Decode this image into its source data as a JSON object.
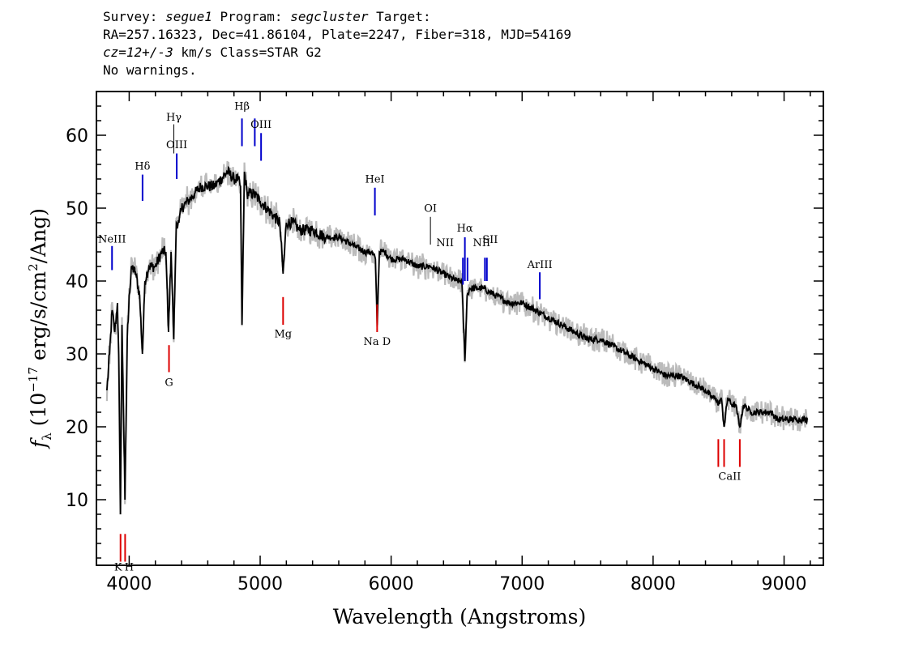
{
  "header": {
    "line1": {
      "survey_label": "Survey: ",
      "survey": "segue1",
      "program_label": " Program: ",
      "program": "segcluster",
      "target_label": " Target:"
    },
    "line2": "RA=257.16323, Dec=41.86104, Plate=2247, Fiber=318, MJD=54169",
    "line3": {
      "cz": "cz=12+/-3",
      "rest": " km/s Class=STAR G2"
    },
    "line4": "No warnings."
  },
  "chart_data": {
    "type": "line",
    "xlabel": "Wavelength (Angstroms)",
    "ylabel": "f_λ (10^-17 erg/s/cm^2/Ang)",
    "xlim": [
      3750,
      9300
    ],
    "ylim": [
      1,
      66
    ],
    "x_ticks": [
      4000,
      5000,
      6000,
      7000,
      8000,
      9000
    ],
    "y_ticks": [
      10,
      20,
      30,
      40,
      50,
      60
    ],
    "colors": {
      "flux": "#000000",
      "error": "#bbbbbb",
      "emission": "#0000cc",
      "absorption": "#dd0000",
      "sky": "#000000"
    },
    "series": [
      {
        "x": [
          3830,
          3850,
          3870,
          3890,
          3910,
          3920,
          3933,
          3945,
          3968,
          3985,
          4000,
          4020,
          4050,
          4080,
          4101,
          4120,
          4150,
          4200,
          4250,
          4280,
          4300,
          4320,
          4340,
          4360,
          4380,
          4400,
          4450,
          4500,
          4550,
          4600,
          4650,
          4700,
          4750,
          4800,
          4830,
          4850,
          4861,
          4880,
          4900,
          4950,
          5000,
          5050,
          5100,
          5150,
          5175,
          5200,
          5250,
          5300,
          5400,
          5500,
          5600,
          5700,
          5800,
          5850,
          5880,
          5893,
          5910,
          5950,
          6000,
          6100,
          6200,
          6300,
          6400,
          6500,
          6540,
          6563,
          6580,
          6600,
          6650,
          6700,
          6800,
          6900,
          7000,
          7100,
          7200,
          7300,
          7400,
          7500,
          7600,
          7700,
          7800,
          7900,
          8000,
          8100,
          8200,
          8300,
          8400,
          8450,
          8480,
          8498,
          8520,
          8542,
          8570,
          8600,
          8630,
          8662,
          8690,
          8750,
          8800,
          8850,
          8900,
          8950,
          9000,
          9050,
          9100,
          9150,
          9180
        ],
        "y": [
          25,
          30,
          36,
          33,
          37,
          30,
          8,
          34,
          10,
          32,
          38,
          42,
          41,
          38,
          30,
          40,
          42,
          42,
          44,
          44,
          33,
          44,
          32,
          48,
          48,
          50,
          51,
          52,
          53,
          53,
          53,
          54,
          55,
          54,
          54,
          53,
          34,
          55,
          52,
          52,
          51,
          50,
          49,
          48,
          41,
          48,
          48,
          47,
          47,
          46,
          46,
          45,
          44,
          44,
          43,
          34,
          44,
          44,
          43,
          43,
          42,
          42,
          41,
          40,
          40,
          29,
          38,
          39,
          39,
          39,
          38,
          37,
          37,
          36,
          35,
          34,
          33,
          32,
          32,
          31,
          30,
          29,
          28,
          27,
          27,
          26,
          25,
          24,
          24,
          23,
          24,
          20,
          24,
          23,
          23,
          20,
          23,
          22,
          22,
          22,
          22,
          21,
          21,
          21,
          21,
          21,
          21
        ]
      }
    ],
    "line_markers": [
      {
        "label": "NeIII",
        "wavelength": 3869,
        "kind": "emission",
        "y1": 41.5,
        "y2": 44.8,
        "label_y": 45.3
      },
      {
        "label": "Hδ",
        "wavelength": 4102,
        "kind": "emission",
        "y1": 51,
        "y2": 54.6,
        "label_y": 55.3
      },
      {
        "label": "Hγ",
        "wavelength": 4341,
        "kind": "sky",
        "y1": 57.5,
        "y2": 61.5,
        "label_y": 62.0
      },
      {
        "label": "OIII",
        "wavelength": 4363,
        "kind": "emission",
        "y1": 54,
        "y2": 57.5,
        "label_y": 58.2
      },
      {
        "label": "Hβ",
        "wavelength": 4861,
        "kind": "emission",
        "y1": 58.5,
        "y2": 62.3,
        "label_y": 63.5
      },
      {
        "label": "OIII",
        "wavelength": 4959,
        "kind": "emission",
        "y1": 58.5,
        "y2": 62.3,
        "label_y": -1
      },
      {
        "label": "OIII",
        "wavelength": 5007,
        "kind": "emission",
        "y1": 56.5,
        "y2": 60.3,
        "label_y": 61.0
      },
      {
        "label": "HeI",
        "wavelength": 5876,
        "kind": "emission",
        "y1": 49,
        "y2": 52.8,
        "label_y": 53.5
      },
      {
        "label": "OI",
        "wavelength": 6300,
        "kind": "sky",
        "y1": 45,
        "y2": 48.8,
        "label_y": 49.5
      },
      {
        "label": "NII",
        "wavelength": 6548,
        "kind": "emission",
        "y1": 39.5,
        "y2": 43.2,
        "label_y": 44.8
      },
      {
        "label": "Hα",
        "wavelength": 6563,
        "kind": "emission",
        "y1": 40,
        "y2": 46,
        "label_y": 46.8
      },
      {
        "label": "NII",
        "wavelength": 6583,
        "kind": "emission",
        "y1": 40,
        "y2": 43.2,
        "label_y": -1
      },
      {
        "label": "NII",
        "wavelength": 6716,
        "kind": "emission",
        "y1": 40,
        "y2": 43.2,
        "label_y": 44.8
      },
      {
        "label": "SII",
        "wavelength": 6731,
        "kind": "emission",
        "y1": 40,
        "y2": 43.2,
        "label_y": 45.2
      },
      {
        "label": "ArIII",
        "wavelength": 7135,
        "kind": "emission",
        "y1": 37.5,
        "y2": 41.2,
        "label_y": 41.8
      },
      {
        "label": "K",
        "wavelength": 3934,
        "kind": "absorption",
        "y1": 1.5,
        "y2": 5.3,
        "label_y": 0.3
      },
      {
        "label": "H",
        "wavelength": 3969,
        "kind": "absorption",
        "y1": 1.5,
        "y2": 5.3,
        "label_y": 0.3
      },
      {
        "label": "G",
        "wavelength": 4304,
        "kind": "absorption",
        "y1": 27.5,
        "y2": 31.2,
        "label_y": 25.6
      },
      {
        "label": "Mg",
        "wavelength": 5175,
        "kind": "absorption",
        "y1": 34,
        "y2": 37.8,
        "label_y": 32.3
      },
      {
        "label": "Na D",
        "wavelength": 5893,
        "kind": "absorption",
        "y1": 33,
        "y2": 36.8,
        "label_y": 31.2
      },
      {
        "label": "CaII",
        "wavelength": 8498,
        "kind": "absorption",
        "y1": 14.5,
        "y2": 18.3,
        "label_y": 12.7
      },
      {
        "label": "CaII",
        "wavelength": 8542,
        "kind": "absorption",
        "y1": 14.5,
        "y2": 18.3,
        "label_y": -1
      },
      {
        "label": "CaII",
        "wavelength": 8662,
        "kind": "absorption",
        "y1": 14.5,
        "y2": 18.3,
        "label_y": -1
      }
    ]
  }
}
